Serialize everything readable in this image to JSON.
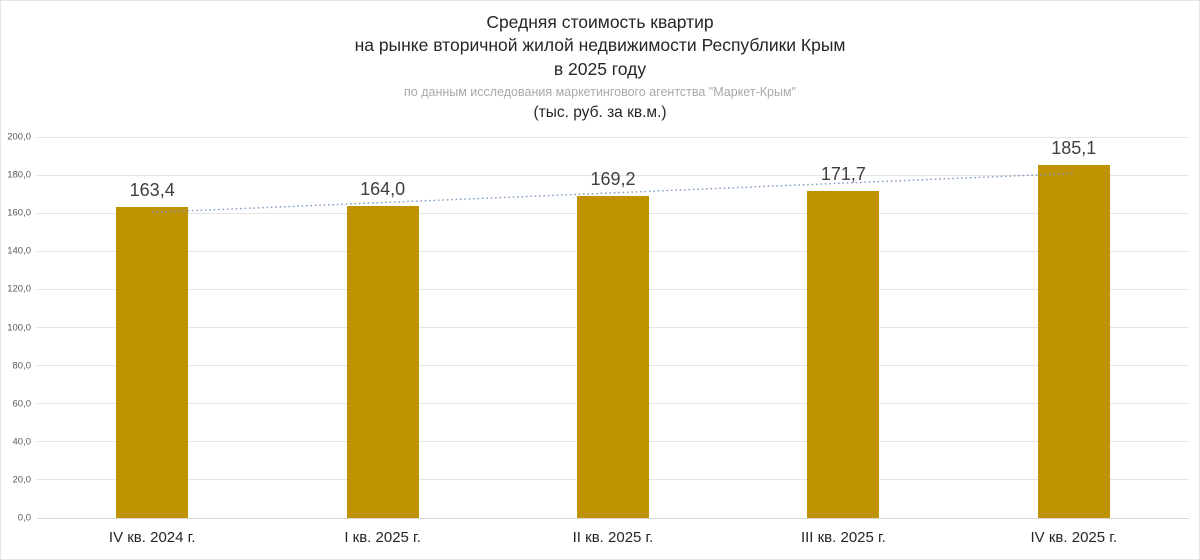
{
  "header": {
    "title_line1": "Средняя стоимость квартир",
    "title_line2": "на рынке вторичной жилой недвижимости Республики Крым",
    "title_line3": "в 2025 году",
    "subtitle": "по данным исследования маркетингового агентства \"Маркет-Крым\"",
    "units": "(тыс. руб. за кв.м.)"
  },
  "chart_data": {
    "type": "bar",
    "title": "Средняя стоимость квартир на рынке вторичной жилой недвижимости Республики Крым в 2025 году",
    "subtitle": "по данным исследования маркетингового агентства \"Маркет-Крым\"",
    "units_label": "(тыс. руб. за кв.м.)",
    "categories": [
      "IV кв. 2024 г.",
      "I кв. 2025 г.",
      "II кв. 2025 г.",
      "III кв. 2025 г.",
      "IV кв. 2025 г."
    ],
    "values": [
      163.4,
      164.0,
      169.2,
      171.7,
      185.1
    ],
    "data_labels": [
      "163,4",
      "164,0",
      "169,2",
      "171,7",
      "185,1"
    ],
    "xlabel": "",
    "ylabel": "",
    "ylim": [
      0,
      200
    ],
    "ytick_step": 20,
    "ytick_labels": [
      "0,0",
      "20,0",
      "40,0",
      "60,0",
      "80,0",
      "100,0",
      "120,0",
      "140,0",
      "160,0",
      "180,0",
      "200,0"
    ],
    "grid": true,
    "legend": false,
    "bar_color": "#bf9202",
    "trendline": {
      "type": "linear",
      "style": "dotted",
      "color": "#7f9cc2"
    }
  }
}
